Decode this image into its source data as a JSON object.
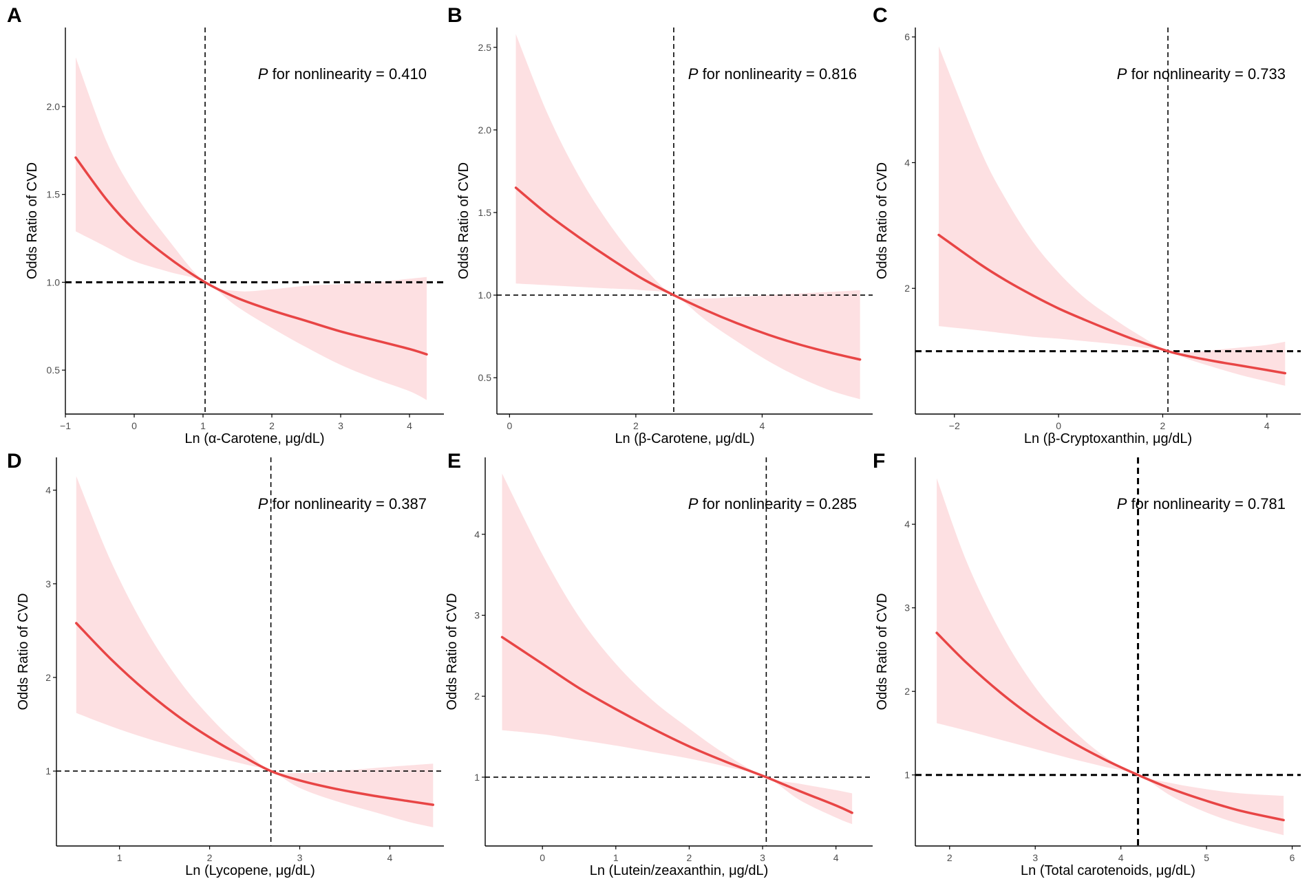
{
  "figure": {
    "colors": {
      "curve": "#e84545",
      "band": "#fde0e2",
      "axis": "#000000",
      "ref_line": "#000000"
    }
  },
  "chart_data": [
    {
      "type": "line",
      "panel_label": "A",
      "xlabel": "Ln (α-Carotene, μg/dL)",
      "ylabel": "Odds Ratio of CVD",
      "annotation_p": "P",
      "annotation_rest": " for nonlinearity = 0.410",
      "xlim": [
        -1.0,
        4.5
      ],
      "ylim": [
        0.25,
        2.45
      ],
      "xticks": [
        -1,
        0,
        1,
        2,
        3,
        4
      ],
      "yticks": [
        0.5,
        1.0,
        1.5,
        2.0
      ],
      "xtick_labels": [
        "−1",
        "0",
        "1",
        "2",
        "3",
        "4"
      ],
      "ytick_labels": [
        "0.5",
        "1.0",
        "1.5",
        "2.0"
      ],
      "ref_x": 1.03,
      "ref_y": 1.0,
      "thick_ref_y": true,
      "thick_ref_x": false,
      "series": [
        {
          "name": "Odds Ratio",
          "x": [
            -0.85,
            -0.4,
            0.0,
            0.5,
            1.03,
            1.5,
            2.0,
            2.5,
            3.0,
            3.5,
            4.0,
            4.25
          ],
          "values": [
            1.71,
            1.47,
            1.3,
            1.14,
            1.0,
            0.91,
            0.84,
            0.78,
            0.72,
            0.67,
            0.62,
            0.59
          ]
        },
        {
          "name": "95% CI lower",
          "x": [
            -0.85,
            -0.4,
            0.0,
            0.5,
            1.03,
            1.5,
            2.0,
            2.5,
            3.0,
            3.5,
            4.0,
            4.25
          ],
          "values": [
            1.29,
            1.2,
            1.12,
            1.06,
            1.0,
            0.86,
            0.74,
            0.63,
            0.53,
            0.45,
            0.38,
            0.33
          ]
        },
        {
          "name": "95% CI upper",
          "x": [
            -0.85,
            -0.4,
            0.0,
            0.5,
            1.03,
            1.5,
            2.0,
            2.5,
            3.0,
            3.5,
            4.0,
            4.25
          ],
          "values": [
            2.28,
            1.8,
            1.51,
            1.24,
            1.0,
            0.95,
            0.96,
            0.98,
            0.99,
            1.0,
            1.02,
            1.03
          ]
        }
      ]
    },
    {
      "type": "line",
      "panel_label": "B",
      "xlabel": "Ln (β-Carotene, μg/dL)",
      "ylabel": "Odds Ratio of CVD",
      "annotation_p": "P",
      "annotation_rest": " for nonlinearity = 0.816",
      "xlim": [
        -0.2,
        5.75
      ],
      "ylim": [
        0.28,
        2.62
      ],
      "xticks": [
        0,
        2,
        4
      ],
      "yticks": [
        0.5,
        1.0,
        1.5,
        2.0,
        2.5
      ],
      "xtick_labels": [
        "0",
        "2",
        "4"
      ],
      "ytick_labels": [
        "0.5",
        "1.0",
        "1.5",
        "2.0",
        "2.5"
      ],
      "ref_x": 2.6,
      "ref_y": 1.0,
      "thick_ref_y": false,
      "thick_ref_x": false,
      "series": [
        {
          "name": "Odds Ratio",
          "x": [
            0.1,
            0.6,
            1.1,
            1.6,
            2.1,
            2.6,
            3.1,
            3.6,
            4.1,
            4.6,
            5.1,
            5.55
          ],
          "values": [
            1.65,
            1.49,
            1.35,
            1.22,
            1.1,
            1.0,
            0.91,
            0.83,
            0.76,
            0.7,
            0.65,
            0.61
          ]
        },
        {
          "name": "95% CI lower",
          "x": [
            0.1,
            0.6,
            1.1,
            1.6,
            2.1,
            2.6,
            3.1,
            3.6,
            4.1,
            4.6,
            5.1,
            5.55
          ],
          "values": [
            1.07,
            1.06,
            1.05,
            1.04,
            1.03,
            1.0,
            0.85,
            0.72,
            0.6,
            0.5,
            0.42,
            0.37
          ]
        },
        {
          "name": "95% CI upper",
          "x": [
            0.1,
            0.6,
            1.1,
            1.6,
            2.1,
            2.6,
            3.1,
            3.6,
            4.1,
            4.6,
            5.1,
            5.55
          ],
          "values": [
            2.58,
            2.1,
            1.72,
            1.42,
            1.18,
            1.0,
            0.98,
            0.99,
            1.0,
            1.01,
            1.02,
            1.03
          ]
        }
      ]
    },
    {
      "type": "line",
      "panel_label": "C",
      "xlabel": "Ln (β-Cryptoxanthin, μg/dL)",
      "ylabel": "Odds Ratio of CVD",
      "annotation_p": "P",
      "annotation_rest": " for nonlinearity = 0.733",
      "xlim": [
        -2.75,
        4.65
      ],
      "ylim": [
        0.0,
        6.15
      ],
      "xticks": [
        -2,
        0,
        2,
        4
      ],
      "yticks": [
        2,
        4,
        6
      ],
      "xtick_labels": [
        "−2",
        "0",
        "2",
        "4"
      ],
      "ytick_labels": [
        "2",
        "4",
        "6"
      ],
      "ref_x": 2.1,
      "ref_y": 1.0,
      "thick_ref_y": true,
      "thick_ref_x": false,
      "series": [
        {
          "name": "Odds Ratio",
          "x": [
            -2.3,
            -1.5,
            -1.0,
            -0.5,
            0.0,
            0.5,
            1.0,
            1.5,
            2.1,
            2.5,
            3.0,
            3.5,
            4.0,
            4.35
          ],
          "values": [
            2.85,
            2.38,
            2.12,
            1.89,
            1.68,
            1.5,
            1.33,
            1.17,
            1.0,
            0.92,
            0.84,
            0.77,
            0.7,
            0.65
          ]
        },
        {
          "name": "95% CI lower",
          "x": [
            -2.3,
            -1.5,
            -1.0,
            -0.5,
            0.0,
            0.5,
            1.0,
            1.5,
            2.1,
            2.5,
            3.0,
            3.5,
            4.0,
            4.35
          ],
          "values": [
            1.4,
            1.33,
            1.28,
            1.23,
            1.2,
            1.16,
            1.12,
            1.07,
            1.0,
            0.87,
            0.74,
            0.62,
            0.52,
            0.45
          ]
        },
        {
          "name": "95% CI upper",
          "x": [
            -2.3,
            -1.5,
            -1.0,
            -0.5,
            0.0,
            0.5,
            1.0,
            1.5,
            2.1,
            2.5,
            3.0,
            3.5,
            4.0,
            4.35
          ],
          "values": [
            5.85,
            4.2,
            3.4,
            2.75,
            2.25,
            1.85,
            1.55,
            1.28,
            1.0,
            0.98,
            1.02,
            1.06,
            1.1,
            1.15
          ]
        }
      ]
    },
    {
      "type": "line",
      "panel_label": "D",
      "xlabel": "Ln (Lycopene, μg/dL)",
      "ylabel": "Odds Ratio of CVD",
      "annotation_p": "P",
      "annotation_rest": " for nonlinearity = 0.387",
      "xlim": [
        0.3,
        4.6
      ],
      "ylim": [
        0.2,
        4.35
      ],
      "xticks": [
        1,
        2,
        3,
        4
      ],
      "yticks": [
        1,
        2,
        3,
        4
      ],
      "xtick_labels": [
        "1",
        "2",
        "3",
        "4"
      ],
      "ytick_labels": [
        "1",
        "2",
        "3",
        "4"
      ],
      "ref_x": 2.68,
      "ref_y": 1.0,
      "thick_ref_y": false,
      "thick_ref_x": false,
      "series": [
        {
          "name": "Odds Ratio",
          "x": [
            0.52,
            0.9,
            1.3,
            1.7,
            2.1,
            2.4,
            2.68,
            3.0,
            3.4,
            3.8,
            4.2,
            4.48
          ],
          "values": [
            2.58,
            2.2,
            1.85,
            1.55,
            1.3,
            1.14,
            1.0,
            0.9,
            0.81,
            0.74,
            0.68,
            0.64
          ]
        },
        {
          "name": "95% CI lower",
          "x": [
            0.52,
            0.9,
            1.3,
            1.7,
            2.1,
            2.4,
            2.68,
            3.0,
            3.4,
            3.8,
            4.2,
            4.48
          ],
          "values": [
            1.62,
            1.48,
            1.35,
            1.24,
            1.14,
            1.07,
            1.0,
            0.82,
            0.68,
            0.57,
            0.46,
            0.4
          ]
        },
        {
          "name": "95% CI upper",
          "x": [
            0.52,
            0.9,
            1.3,
            1.7,
            2.1,
            2.4,
            2.68,
            3.0,
            3.4,
            3.8,
            4.2,
            4.48
          ],
          "values": [
            4.15,
            3.25,
            2.5,
            1.92,
            1.48,
            1.22,
            1.0,
            0.98,
            1.0,
            1.03,
            1.06,
            1.08
          ]
        }
      ]
    },
    {
      "type": "line",
      "panel_label": "E",
      "xlabel": "Ln (Lutein/zeaxanthin, μg/dL)",
      "ylabel": "Odds Ratio of CVD",
      "annotation_p": "P",
      "annotation_rest": " for nonlinearity = 0.285",
      "xlim": [
        -0.78,
        4.5
      ],
      "ylim": [
        0.15,
        4.95
      ],
      "xticks": [
        0,
        1,
        2,
        3,
        4
      ],
      "yticks": [
        1,
        2,
        3,
        4
      ],
      "xtick_labels": [
        "0",
        "1",
        "2",
        "3",
        "4"
      ],
      "ytick_labels": [
        "1",
        "2",
        "3",
        "4"
      ],
      "ref_x": 3.05,
      "ref_y": 1.0,
      "thick_ref_y": false,
      "thick_ref_x": false,
      "series": [
        {
          "name": "Odds Ratio",
          "x": [
            -0.55,
            0.0,
            0.5,
            1.0,
            1.5,
            2.0,
            2.5,
            3.05,
            3.5,
            4.0,
            4.22
          ],
          "values": [
            2.73,
            2.4,
            2.1,
            1.84,
            1.6,
            1.38,
            1.19,
            1.0,
            0.83,
            0.65,
            0.56
          ]
        },
        {
          "name": "95% CI lower",
          "x": [
            -0.55,
            0.0,
            0.5,
            1.0,
            1.5,
            2.0,
            2.5,
            3.05,
            3.5,
            4.0,
            4.22
          ],
          "values": [
            1.58,
            1.53,
            1.46,
            1.39,
            1.31,
            1.23,
            1.13,
            1.0,
            0.72,
            0.5,
            0.42
          ]
        },
        {
          "name": "95% CI upper",
          "x": [
            -0.55,
            0.0,
            0.5,
            1.0,
            1.5,
            2.0,
            2.5,
            3.05,
            3.5,
            4.0,
            4.22
          ],
          "values": [
            4.75,
            3.75,
            2.98,
            2.4,
            1.95,
            1.6,
            1.28,
            1.0,
            0.92,
            0.84,
            0.8
          ]
        }
      ]
    },
    {
      "type": "line",
      "panel_label": "F",
      "xlabel": "Ln (Total carotenoids, μg/dL)",
      "ylabel": "Odds Ratio of CVD",
      "annotation_p": "P",
      "annotation_rest": " for nonlinearity = 0.781",
      "xlim": [
        1.6,
        6.1
      ],
      "ylim": [
        0.15,
        4.8
      ],
      "xticks": [
        2,
        3,
        4,
        5,
        6
      ],
      "yticks": [
        1,
        2,
        3,
        4
      ],
      "xtick_labels": [
        "2",
        "3",
        "4",
        "5",
        "6"
      ],
      "ytick_labels": [
        "1",
        "2",
        "3",
        "4"
      ],
      "ref_x": 4.2,
      "ref_y": 1.0,
      "thick_ref_y": true,
      "thick_ref_x": true,
      "series": [
        {
          "name": "Odds Ratio",
          "x": [
            1.85,
            2.2,
            2.6,
            3.0,
            3.4,
            3.8,
            4.2,
            4.6,
            5.0,
            5.4,
            5.9
          ],
          "values": [
            2.7,
            2.34,
            1.98,
            1.67,
            1.41,
            1.19,
            1.0,
            0.83,
            0.69,
            0.57,
            0.46
          ]
        },
        {
          "name": "95% CI lower",
          "x": [
            1.85,
            2.2,
            2.6,
            3.0,
            3.4,
            3.8,
            4.2,
            4.6,
            5.0,
            5.4,
            5.9
          ],
          "values": [
            1.62,
            1.53,
            1.42,
            1.31,
            1.2,
            1.1,
            1.0,
            0.74,
            0.55,
            0.41,
            0.28
          ]
        },
        {
          "name": "95% CI upper",
          "x": [
            1.85,
            2.2,
            2.6,
            3.0,
            3.4,
            3.8,
            4.2,
            4.6,
            5.0,
            5.4,
            5.9
          ],
          "values": [
            4.55,
            3.55,
            2.7,
            2.05,
            1.58,
            1.23,
            1.0,
            0.9,
            0.83,
            0.78,
            0.75
          ]
        }
      ]
    }
  ]
}
